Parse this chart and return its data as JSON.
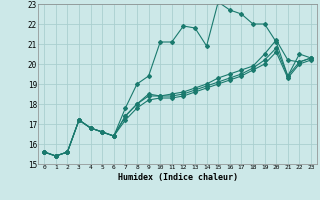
{
  "xlabel": "Humidex (Indice chaleur)",
  "bg_color": "#cce8e8",
  "grid_color": "#aacfcf",
  "line_color": "#1a7a6e",
  "xlim": [
    -0.5,
    23.5
  ],
  "ylim": [
    15,
    23
  ],
  "xticks": [
    0,
    1,
    2,
    3,
    4,
    5,
    6,
    7,
    8,
    9,
    10,
    11,
    12,
    13,
    14,
    15,
    16,
    17,
    18,
    19,
    20,
    21,
    22,
    23
  ],
  "yticks": [
    15,
    16,
    17,
    18,
    19,
    20,
    21,
    22,
    23
  ],
  "series": [
    [
      15.6,
      15.4,
      15.6,
      17.2,
      16.8,
      16.6,
      16.4,
      17.8,
      19.0,
      19.4,
      21.1,
      21.1,
      21.9,
      21.8,
      20.9,
      23.1,
      22.7,
      22.5,
      22.0,
      22.0,
      21.1,
      19.4,
      20.5,
      20.3
    ],
    [
      15.6,
      15.4,
      15.6,
      17.2,
      16.8,
      16.6,
      16.4,
      17.4,
      18.0,
      18.5,
      18.4,
      18.5,
      18.6,
      18.8,
      19.0,
      19.3,
      19.5,
      19.7,
      19.9,
      20.5,
      21.2,
      20.2,
      20.1,
      20.3
    ],
    [
      15.6,
      15.4,
      15.6,
      17.2,
      16.8,
      16.6,
      16.4,
      17.4,
      18.0,
      18.4,
      18.4,
      18.4,
      18.5,
      18.7,
      18.9,
      19.1,
      19.3,
      19.5,
      19.8,
      20.2,
      20.8,
      19.4,
      20.1,
      20.3
    ],
    [
      15.6,
      15.4,
      15.6,
      17.2,
      16.8,
      16.6,
      16.4,
      17.2,
      17.8,
      18.2,
      18.3,
      18.3,
      18.4,
      18.6,
      18.8,
      19.0,
      19.2,
      19.4,
      19.7,
      20.0,
      20.6,
      19.3,
      20.0,
      20.2
    ]
  ]
}
